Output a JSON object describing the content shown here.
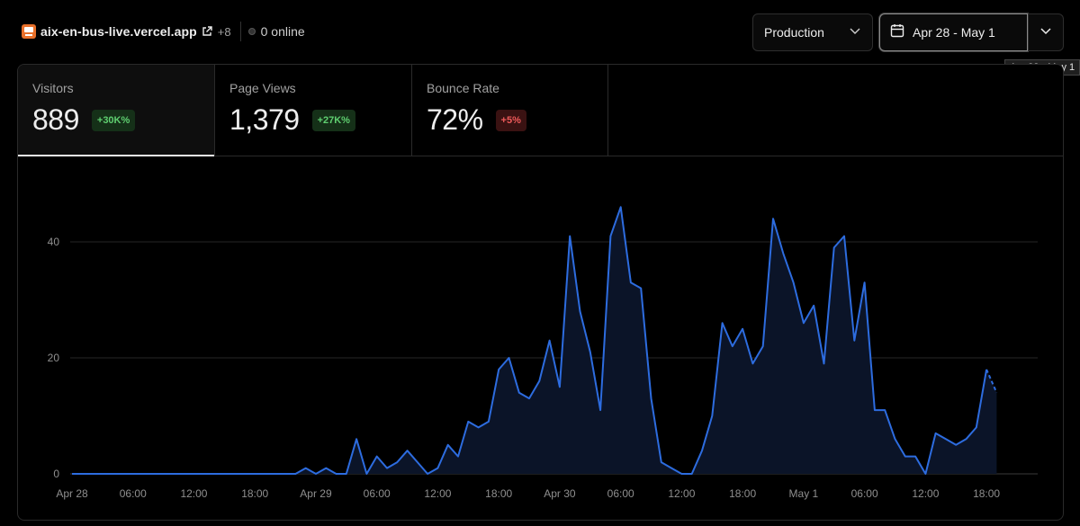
{
  "topbar": {
    "site_name": "aix-en-bus-live.vercel.app",
    "more_count": "+8",
    "online_text": "0 online",
    "site_icon": "bus-icon",
    "accent": "#e8702a"
  },
  "filters": {
    "environment": "Production",
    "date_range": "Apr 28 - May 1",
    "tooltip": "Apr 28 - May 1"
  },
  "stats": [
    {
      "label": "Visitors",
      "value": "889",
      "change": "+30K%",
      "trend": "up"
    },
    {
      "label": "Page Views",
      "value": "1,379",
      "change": "+27K%",
      "trend": "up"
    },
    {
      "label": "Bounce Rate",
      "value": "72%",
      "change": "+5%",
      "trend": "down"
    }
  ],
  "colors": {
    "line": "#2d6cdf",
    "area": "#0b1428",
    "up": "#5fcf70",
    "down": "#ef5a5a"
  },
  "chart_data": {
    "type": "area",
    "series": [
      {
        "values": [
          0,
          0,
          0,
          0,
          0,
          0,
          0,
          0,
          0,
          0,
          0,
          0,
          0,
          0,
          0,
          0,
          0,
          0,
          0,
          0,
          0,
          0,
          0,
          1,
          0,
          1,
          0,
          0,
          6,
          0,
          3,
          1,
          2,
          4,
          2,
          0,
          1,
          5,
          3,
          9,
          8,
          9,
          18,
          20,
          14,
          13,
          16,
          23,
          15,
          41,
          28,
          21,
          11,
          41,
          46,
          33,
          32,
          13,
          2,
          1,
          0,
          0,
          4,
          10,
          26,
          22,
          25,
          19,
          22,
          44,
          38,
          33,
          26,
          29,
          19,
          39,
          41,
          23,
          33,
          11,
          11,
          6,
          3,
          3,
          0,
          7,
          6,
          5,
          6,
          8,
          18,
          14
        ]
      }
    ],
    "x_start": "Apr 28 00:00",
    "x_step_hours": 1,
    "x_tick_labels": [
      "Apr 28",
      "06:00",
      "12:00",
      "18:00",
      "Apr 29",
      "06:00",
      "12:00",
      "18:00",
      "Apr 30",
      "06:00",
      "12:00",
      "18:00",
      "May 1",
      "06:00",
      "12:00",
      "18:00"
    ],
    "y_ticks": [
      0,
      20,
      40
    ],
    "ylim": [
      0,
      46
    ],
    "grid": true
  }
}
